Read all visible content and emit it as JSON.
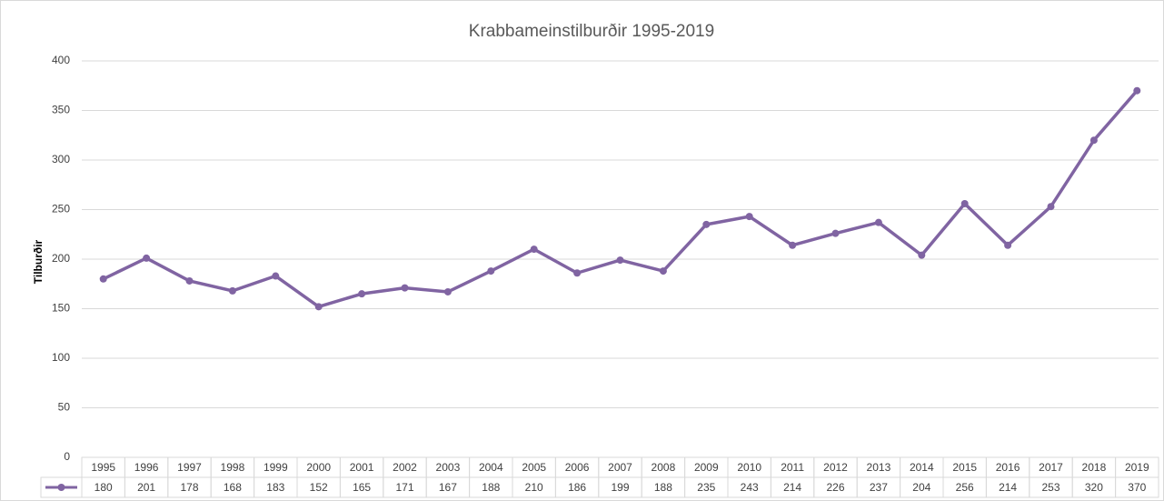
{
  "chart_data": {
    "type": "line",
    "title": "Krabbameinstilburðir 1995-2019",
    "y_label": "Tilburðir",
    "categories": [
      "1995",
      "1996",
      "1997",
      "1998",
      "1999",
      "2000",
      "2001",
      "2002",
      "2003",
      "2004",
      "2005",
      "2006",
      "2007",
      "2008",
      "2009",
      "2010",
      "2011",
      "2012",
      "2013",
      "2014",
      "2015",
      "2016",
      "2017",
      "2018",
      "2019"
    ],
    "values": [
      180,
      201,
      178,
      168,
      183,
      152,
      165,
      171,
      167,
      188,
      210,
      186,
      199,
      188,
      235,
      243,
      214,
      226,
      237,
      204,
      256,
      214,
      253,
      320,
      370
    ],
    "color": "#8064a2",
    "ylim": [
      0,
      400
    ],
    "yticks": [
      0,
      50,
      100,
      150,
      200,
      250,
      300,
      350,
      400
    ],
    "grid": true,
    "data_table": true
  }
}
